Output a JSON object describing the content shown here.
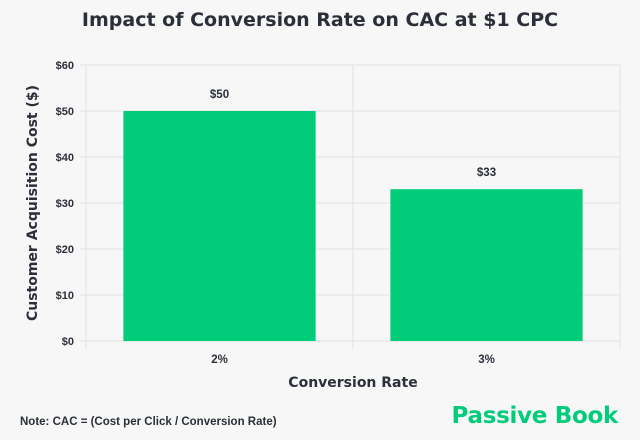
{
  "chart_data": {
    "type": "bar",
    "title": "Impact of Conversion Rate on CAC at $1 CPC",
    "xlabel": "Conversion Rate",
    "ylabel": "Customer Acquisition Cost ($)",
    "categories": [
      "2%",
      "3%"
    ],
    "values": [
      50,
      33
    ],
    "data_labels": [
      "$50",
      "$33"
    ],
    "ylim": [
      0,
      60
    ],
    "yticks": [
      0,
      10,
      20,
      30,
      40,
      50,
      60
    ],
    "ytick_labels": [
      "$0",
      "$10",
      "$20",
      "$30",
      "$40",
      "$50",
      "$60"
    ],
    "grid": true,
    "bar_color": "#00cc7a"
  },
  "note": "Note: CAC = (Cost per Click / Conversion Rate)",
  "logo": "Passive Book"
}
